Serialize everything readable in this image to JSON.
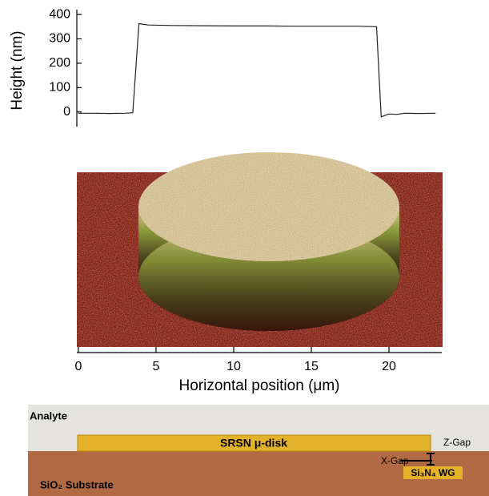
{
  "chart_data": {
    "type": "line",
    "y_label": "Height (nm)",
    "x_label": "Horizontal position (μm)",
    "x": [
      0,
      1,
      2,
      3,
      3.5,
      3.9,
      4.5,
      6,
      8,
      10,
      12,
      14,
      16,
      18,
      19.2,
      19.5,
      19.7,
      20,
      20.5,
      21,
      22,
      23
    ],
    "values": [
      -5,
      -5,
      -6,
      -5,
      -3,
      362,
      357,
      355,
      354,
      353,
      353,
      352,
      352,
      352,
      350,
      -20,
      -15,
      -8,
      -10,
      -5,
      -6,
      -5
    ],
    "color": "#222222",
    "xlim": [
      -0.1,
      23.4
    ],
    "xticks": [
      0,
      5,
      10,
      15,
      20
    ],
    "ylim": [
      -60,
      420
    ],
    "yticks": [
      0,
      100,
      200,
      300,
      400
    ]
  },
  "schematic": {
    "analyte": "Analyte",
    "disk": "SRSN μ-disk",
    "z_gap": "Z-Gap",
    "x_gap": "X-Gap",
    "waveguide": "Si₃N₄ WG",
    "substrate": "SiO₂ Substrate"
  }
}
